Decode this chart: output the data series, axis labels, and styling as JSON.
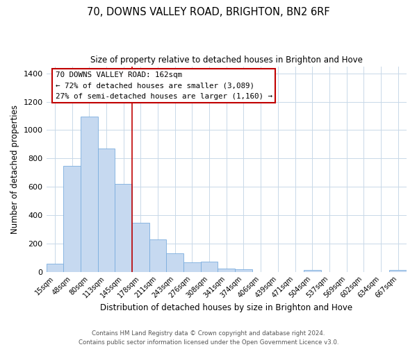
{
  "title": "70, DOWNS VALLEY ROAD, BRIGHTON, BN2 6RF",
  "subtitle": "Size of property relative to detached houses in Brighton and Hove",
  "xlabel": "Distribution of detached houses by size in Brighton and Hove",
  "ylabel": "Number of detached properties",
  "bar_labels": [
    "15sqm",
    "48sqm",
    "80sqm",
    "113sqm",
    "145sqm",
    "178sqm",
    "211sqm",
    "243sqm",
    "276sqm",
    "308sqm",
    "341sqm",
    "374sqm",
    "406sqm",
    "439sqm",
    "471sqm",
    "504sqm",
    "537sqm",
    "569sqm",
    "602sqm",
    "634sqm",
    "667sqm"
  ],
  "bar_values": [
    55,
    750,
    1095,
    870,
    620,
    345,
    228,
    130,
    65,
    70,
    25,
    20,
    0,
    0,
    0,
    15,
    0,
    0,
    0,
    0,
    15
  ],
  "bar_color": "#c6d9f0",
  "bar_edge_color": "#7aadde",
  "ylim": [
    0,
    1450
  ],
  "yticks": [
    0,
    200,
    400,
    600,
    800,
    1000,
    1200,
    1400
  ],
  "property_line_x": 4.5,
  "property_line_color": "#c00000",
  "annotation_title": "70 DOWNS VALLEY ROAD: 162sqm",
  "annotation_line1": "← 72% of detached houses are smaller (3,089)",
  "annotation_line2": "27% of semi-detached houses are larger (1,160) →",
  "annotation_box_color": "#c00000",
  "footer_line1": "Contains HM Land Registry data © Crown copyright and database right 2024.",
  "footer_line2": "Contains public sector information licensed under the Open Government Licence v3.0.",
  "background_color": "#ffffff",
  "grid_color": "#c8d8e8"
}
